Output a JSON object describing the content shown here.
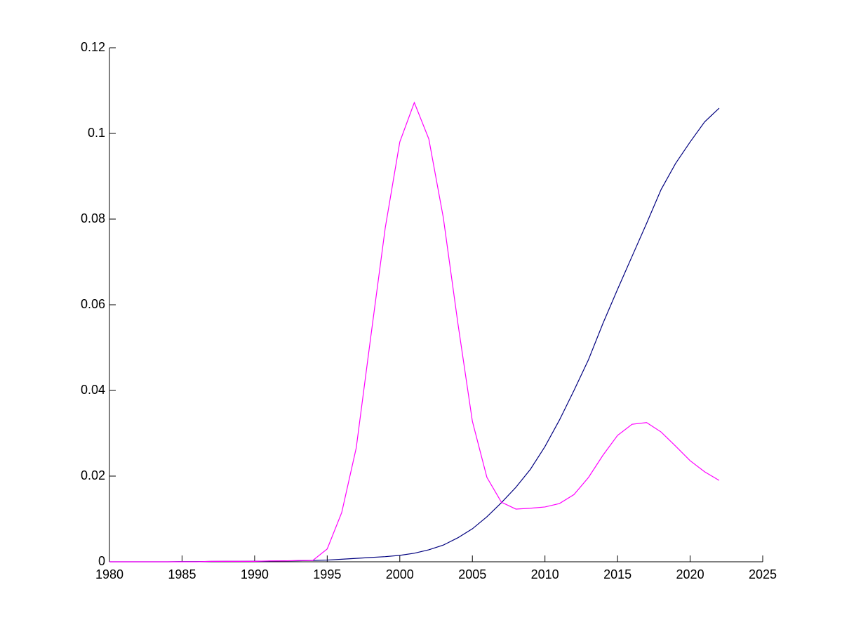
{
  "chart_data": {
    "type": "line",
    "x": [
      1980,
      1981,
      1982,
      1983,
      1984,
      1985,
      1986,
      1987,
      1988,
      1989,
      1990,
      1991,
      1992,
      1993,
      1994,
      1995,
      1996,
      1997,
      1998,
      1999,
      2000,
      2001,
      2002,
      2003,
      2004,
      2005,
      2006,
      2007,
      2008,
      2009,
      2010,
      2011,
      2012,
      2013,
      2014,
      2015,
      2016,
      2017,
      2018,
      2019,
      2020,
      2021,
      2022
    ],
    "series": [
      {
        "color": "#00007f",
        "values": [
          0,
          0,
          0,
          0,
          0,
          5e-05,
          5e-05,
          8e-05,
          0.0001,
          0.0001,
          0.00012,
          0.00015,
          0.0002,
          0.00025,
          0.0003,
          0.0004,
          0.0006,
          0.0008,
          0.001,
          0.0012,
          0.0015,
          0.002,
          0.0028,
          0.0039,
          0.0056,
          0.0077,
          0.0105,
          0.0138,
          0.0174,
          0.0216,
          0.0269,
          0.0331,
          0.04,
          0.0472,
          0.0557,
          0.0636,
          0.0713,
          0.079,
          0.0869,
          0.093,
          0.098,
          0.1027,
          0.1059
        ]
      },
      {
        "color": "#ff00ff",
        "values": [
          0,
          0,
          0,
          0,
          0,
          0,
          0,
          0.0001,
          0.0001,
          0.0001,
          0.0001,
          0.0002,
          0.0002,
          0.0003,
          0.0003,
          0.003,
          0.0115,
          0.0266,
          0.0525,
          0.078,
          0.098,
          0.1072,
          0.0987,
          0.0803,
          0.0557,
          0.0328,
          0.0197,
          0.0139,
          0.0123,
          0.0125,
          0.0128,
          0.0136,
          0.0157,
          0.0197,
          0.0249,
          0.0295,
          0.0321,
          0.0325,
          0.0303,
          0.027,
          0.0236,
          0.021,
          0.019
        ]
      }
    ],
    "xlim": [
      1980,
      2025
    ],
    "xticks": [
      1980,
      1985,
      1990,
      1995,
      2000,
      2005,
      2010,
      2015,
      2020,
      2025
    ],
    "ylim": [
      0,
      0.12
    ],
    "yticks": [
      0,
      0.02,
      0.04,
      0.06,
      0.08,
      0.1,
      0.12
    ]
  }
}
